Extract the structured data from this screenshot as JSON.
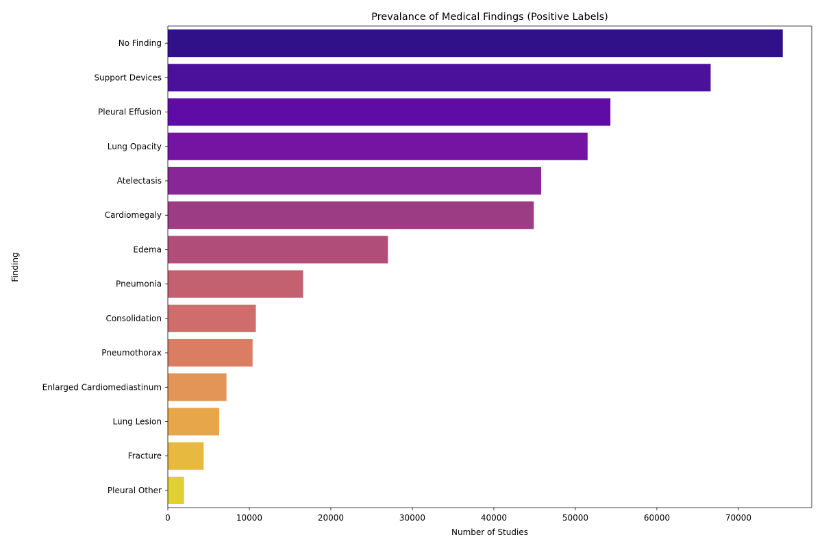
{
  "chart_data": {
    "type": "bar",
    "orientation": "horizontal",
    "title": "Prevalance of Medical Findings (Positive Labels)",
    "xlabel": "Number of Studies",
    "ylabel": "Finding",
    "xlim": [
      0,
      79000
    ],
    "xticks": [
      0,
      10000,
      20000,
      30000,
      40000,
      50000,
      60000,
      70000
    ],
    "grid": false,
    "categories": [
      "No Finding",
      "Support Devices",
      "Pleural Effusion",
      "Lung Opacity",
      "Atelectasis",
      "Cardiomegaly",
      "Edema",
      "Pneumonia",
      "Consolidation",
      "Pneumothorax",
      "Enlarged Cardiomediastinum",
      "Lung Lesion",
      "Fracture",
      "Pleural Other"
    ],
    "values": [
      75450,
      66600,
      54300,
      51500,
      45800,
      44900,
      27000,
      16600,
      10800,
      10400,
      7200,
      6300,
      4400,
      2000
    ],
    "colors": [
      "#30118a",
      "#4c119a",
      "#5f0ca6",
      "#7514a2",
      "#882597",
      "#9c3c84",
      "#b04e79",
      "#c36171",
      "#cf6d6c",
      "#da7d62",
      "#e39557",
      "#e8a64a",
      "#e7b93e",
      "#e0d032"
    ]
  }
}
